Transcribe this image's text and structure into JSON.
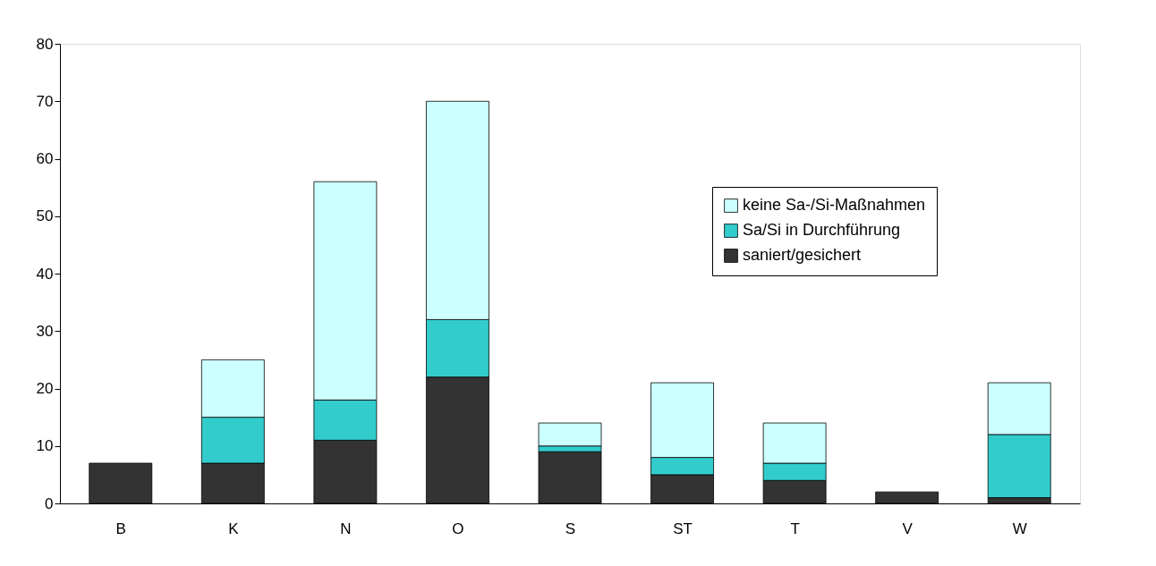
{
  "chart_data": {
    "type": "bar",
    "stacked": true,
    "categories": [
      "B",
      "K",
      "N",
      "O",
      "S",
      "ST",
      "T",
      "V",
      "W"
    ],
    "series": [
      {
        "name": "saniert/gesichert",
        "color": "#333333",
        "values": [
          7,
          7,
          11,
          22,
          9,
          5,
          4,
          2,
          1
        ]
      },
      {
        "name": "Sa/Si in Durchführung",
        "color": "#33cccc",
        "values": [
          null,
          8,
          7,
          10,
          1,
          3,
          3,
          null,
          11
        ]
      },
      {
        "name": "keine Sa-/Si-Maßnahmen",
        "color": "#ccffff",
        "values": [
          null,
          10,
          38,
          38,
          4,
          13,
          7,
          null,
          9
        ]
      }
    ],
    "ylim": [
      0,
      80
    ],
    "yticks": [
      0,
      10,
      20,
      30,
      40,
      50,
      60,
      70,
      80
    ],
    "grid": false,
    "legend": "top right"
  }
}
